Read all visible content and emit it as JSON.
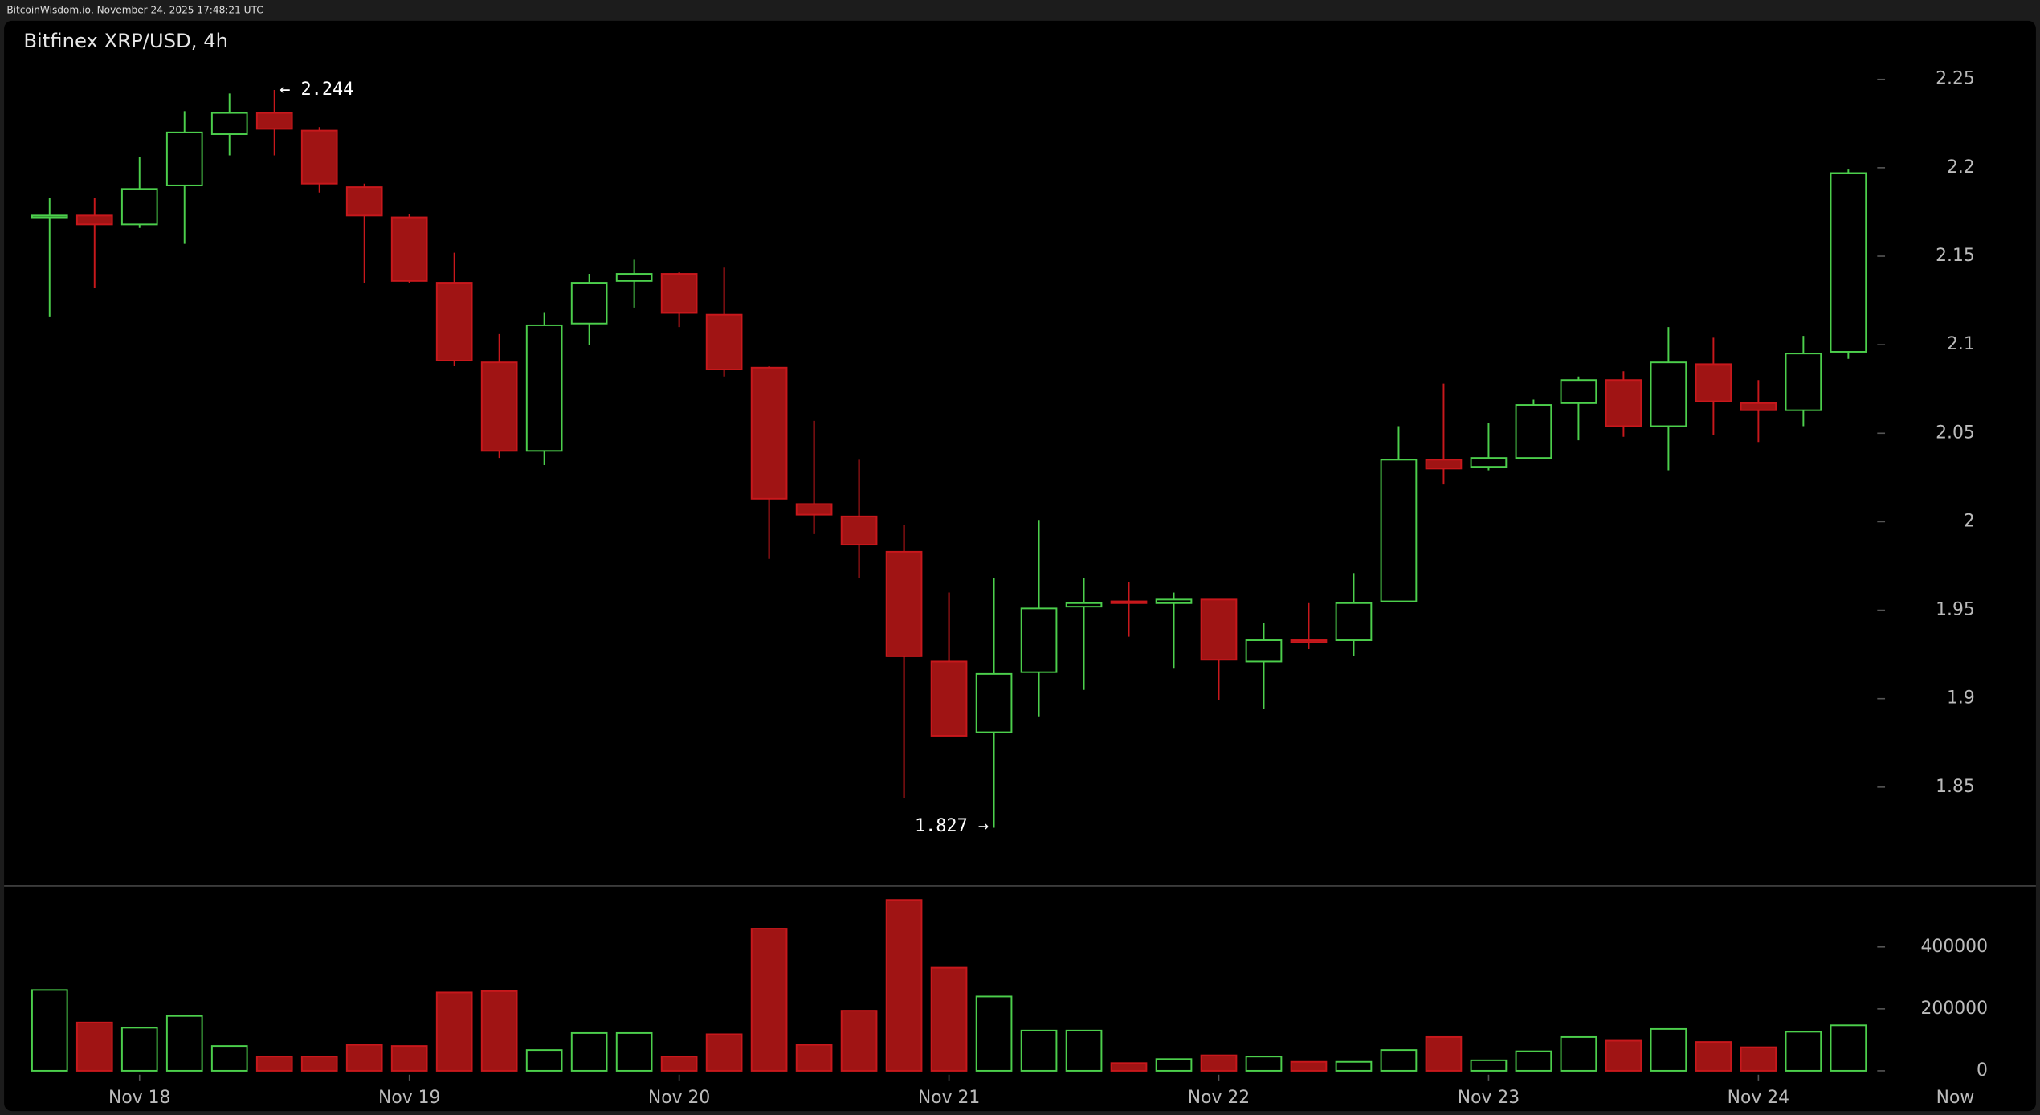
{
  "chart_data": {
    "type": "candlestick",
    "source": "BitcoinWisdom.io, November 24, 2025 17:48:21 UTC",
    "title": "Bitfinex XRP/USD, 4h",
    "categories": [
      null,
      null,
      "Nov 18",
      null,
      null,
      null,
      null,
      null,
      "Nov 19",
      null,
      null,
      null,
      null,
      null,
      "Nov 20",
      null,
      null,
      null,
      null,
      null,
      "Nov 21",
      null,
      null,
      null,
      null,
      null,
      "Nov 22",
      null,
      null,
      null,
      null,
      null,
      "Nov 23",
      null,
      null,
      null,
      null,
      null,
      "Nov 24",
      null,
      null
    ],
    "x_end_label": "Now",
    "open": [
      2.172,
      2.173,
      2.168,
      2.19,
      2.219,
      2.231,
      2.221,
      2.189,
      2.172,
      2.135,
      2.09,
      2.04,
      2.112,
      2.136,
      2.14,
      2.117,
      2.087,
      2.01,
      2.003,
      1.983,
      1.921,
      1.881,
      1.915,
      1.952,
      1.955,
      1.954,
      1.956,
      1.921,
      1.933,
      1.933,
      1.955,
      2.035,
      2.031,
      2.036,
      2.067,
      2.08,
      2.054,
      2.089,
      2.067,
      2.063,
      2.096
    ],
    "high": [
      2.183,
      2.183,
      2.206,
      2.232,
      2.242,
      2.244,
      2.223,
      2.191,
      2.174,
      2.152,
      2.106,
      2.118,
      2.14,
      2.148,
      2.141,
      2.144,
      2.088,
      2.057,
      2.035,
      1.998,
      1.96,
      1.968,
      2.001,
      1.968,
      1.966,
      1.96,
      1.956,
      1.943,
      1.954,
      1.971,
      2.054,
      2.078,
      2.056,
      2.069,
      2.082,
      2.085,
      2.11,
      2.104,
      2.08,
      2.105,
      2.199
    ],
    "low": [
      2.116,
      2.132,
      2.166,
      2.157,
      2.207,
      2.207,
      2.186,
      2.135,
      2.135,
      2.088,
      2.036,
      2.032,
      2.1,
      2.121,
      2.11,
      2.082,
      1.979,
      1.993,
      1.968,
      1.844,
      1.879,
      1.827,
      1.89,
      1.905,
      1.935,
      1.917,
      1.899,
      1.894,
      1.928,
      1.924,
      1.955,
      2.021,
      2.029,
      2.036,
      2.046,
      2.048,
      2.029,
      2.049,
      2.045,
      2.054,
      2.092
    ],
    "close": [
      2.173,
      2.168,
      2.188,
      2.22,
      2.231,
      2.222,
      2.191,
      2.173,
      2.136,
      2.091,
      2.04,
      2.111,
      2.135,
      2.14,
      2.118,
      2.086,
      2.013,
      2.004,
      1.987,
      1.924,
      1.879,
      1.914,
      1.951,
      1.954,
      1.954,
      1.956,
      1.922,
      1.933,
      1.932,
      1.954,
      2.035,
      2.03,
      2.036,
      2.066,
      2.08,
      2.054,
      2.09,
      2.068,
      2.063,
      2.095,
      2.197
    ],
    "volume": [
      261000,
      156000,
      139000,
      177000,
      80000,
      46000,
      46000,
      84000,
      80000,
      253000,
      257000,
      67000,
      122000,
      122000,
      46000,
      118000,
      459000,
      84000,
      194000,
      552000,
      333000,
      240000,
      130000,
      130000,
      25000,
      38000,
      50000,
      46000,
      29000,
      29000,
      67000,
      109000,
      34000,
      63000,
      109000,
      97000,
      135000,
      93000,
      76000,
      126000,
      147000
    ],
    "up_color": "#4ccf4c",
    "down_color": "#a01414",
    "ylim": [
      1.795,
      2.266
    ],
    "yticks": [
      1.85,
      1.9,
      1.95,
      2,
      2.05,
      2.1,
      2.15,
      2.2,
      2.25
    ],
    "volume_ylim": [
      0,
      580000
    ],
    "volume_yticks": [
      0,
      200000,
      400000
    ],
    "annotations": [
      {
        "text": "← 2.244",
        "value": 2.244
      },
      {
        "text": "1.827 →",
        "value": 1.827
      }
    ]
  }
}
